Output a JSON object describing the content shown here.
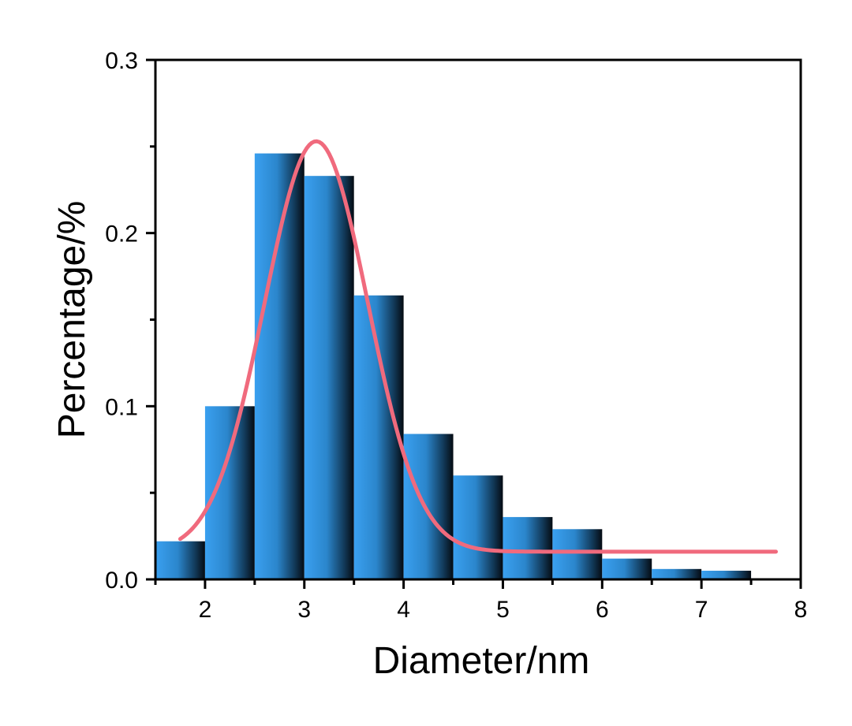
{
  "chart_data": {
    "type": "bar",
    "subtype": "histogram",
    "xlabel": "Diameter/nm",
    "ylabel": "Percentage/%",
    "xlim": [
      1.5,
      8
    ],
    "ylim": [
      0,
      0.3
    ],
    "xticks": [
      2,
      3,
      4,
      5,
      6,
      7,
      8
    ],
    "xtick_labels": [
      "2",
      "3",
      "4",
      "5",
      "6",
      "7",
      "8"
    ],
    "yticks": [
      0.0,
      0.1,
      0.2,
      0.3
    ],
    "ytick_labels": [
      "0.0",
      "0.1",
      "0.2",
      "0.3"
    ],
    "grid": false,
    "bins": [
      {
        "x0": 1.5,
        "x1": 2.0,
        "value": 0.022
      },
      {
        "x0": 2.0,
        "x1": 2.5,
        "value": 0.1
      },
      {
        "x0": 2.5,
        "x1": 3.0,
        "value": 0.246
      },
      {
        "x0": 3.0,
        "x1": 3.5,
        "value": 0.233
      },
      {
        "x0": 3.5,
        "x1": 4.0,
        "value": 0.164
      },
      {
        "x0": 4.0,
        "x1": 4.5,
        "value": 0.084
      },
      {
        "x0": 4.5,
        "x1": 5.0,
        "value": 0.06
      },
      {
        "x0": 5.0,
        "x1": 5.5,
        "value": 0.036
      },
      {
        "x0": 5.5,
        "x1": 6.0,
        "value": 0.029
      },
      {
        "x0": 6.0,
        "x1": 6.5,
        "value": 0.012
      },
      {
        "x0": 6.5,
        "x1": 7.0,
        "value": 0.006
      },
      {
        "x0": 7.0,
        "x1": 7.5,
        "value": 0.005
      }
    ],
    "fit_curve": {
      "type": "gaussian",
      "baseline": 0.016,
      "amplitude": 0.237,
      "center": 3.12,
      "sigma": 0.52,
      "x_range": [
        1.75,
        7.75
      ],
      "color": "#f06a7d"
    },
    "bar_colors": {
      "edge": "#0b1a2a",
      "mid": "#3a9eea"
    }
  }
}
